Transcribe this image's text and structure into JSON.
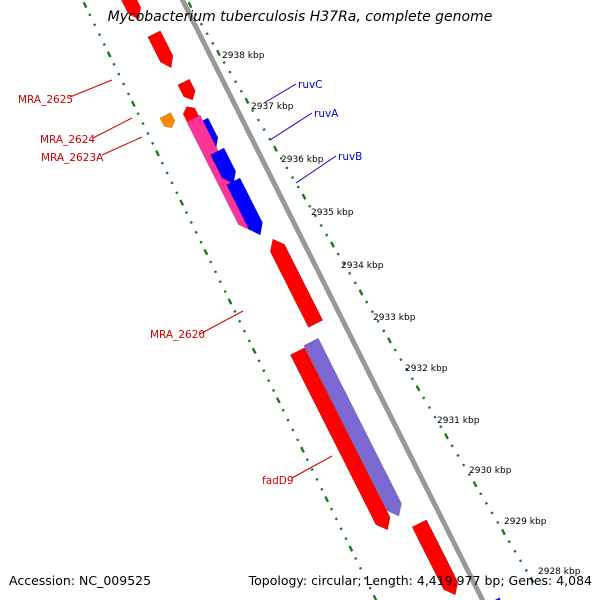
{
  "title": "Mycobacterium tuberculosis H37Ra, complete genome",
  "footer": {
    "accession": "Accession: NC_009525",
    "topology": "Topology: circular; Length: 4,419,977 bp; Genes: 4,084"
  },
  "colors": {
    "backbone": "#999999",
    "ticks": "#1a7a1a",
    "label_red": "#cc0000",
    "label_blue": "#0000cc",
    "gene_red": "#ff0000",
    "gene_blue": "#0000ff",
    "gene_pink": "#ff3399",
    "gene_purple": "#7b68d0",
    "gene_orange": "#ff8800",
    "gene_steel": "#4a8ab5",
    "gene_lime": "#aaff44"
  },
  "ticks": [
    {
      "label": "2938 kbp"
    },
    {
      "label": "2937 kbp"
    },
    {
      "label": "2936 kbp"
    },
    {
      "label": "2935 kbp"
    },
    {
      "label": "2934 kbp"
    },
    {
      "label": "2933 kbp"
    },
    {
      "label": "2932 kbp"
    },
    {
      "label": "2931 kbp"
    },
    {
      "label": "2930 kbp"
    },
    {
      "label": "2929 kbp"
    },
    {
      "label": "2928 kbp"
    }
  ],
  "gene_labels": [
    {
      "text": "MRA_2625",
      "color": "label_red"
    },
    {
      "text": "MRA_2624",
      "color": "label_red"
    },
    {
      "text": "MRA_2623A",
      "color": "label_red"
    },
    {
      "text": "MRA_2620",
      "color": "label_red"
    },
    {
      "text": "fadD9",
      "color": "label_red"
    },
    {
      "text": "ruvC",
      "color": "label_blue"
    },
    {
      "text": "ruvA",
      "color": "label_blue"
    },
    {
      "text": "ruvB",
      "color": "label_blue"
    }
  ]
}
